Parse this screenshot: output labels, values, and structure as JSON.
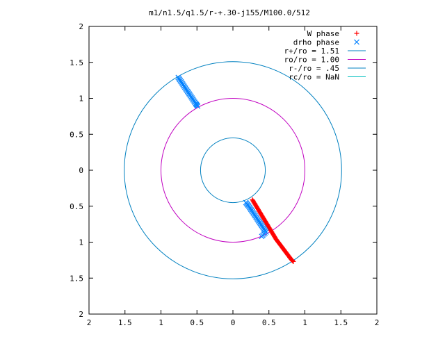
{
  "chart_data": {
    "type": "scatter",
    "title": "m1/n1.5/q1.5/r-+.30-j155/M100.0/512",
    "xlabel": "",
    "ylabel": "",
    "xlim": [
      -2,
      2
    ],
    "ylim": [
      -2,
      2
    ],
    "x_tick_values": [
      -2,
      -1.5,
      -1,
      -0.5,
      0,
      0.5,
      1,
      1.5,
      2
    ],
    "x_tick_labels": [
      "2",
      "1.5",
      "1",
      "0.5",
      "0",
      "0.5",
      "1",
      "1.5",
      "2"
    ],
    "y_tick_values": [
      2,
      1.5,
      1,
      0.5,
      0,
      -0.5,
      -1,
      -1.5,
      -2
    ],
    "y_tick_labels": [
      "2",
      "1.5",
      "1",
      "0.5",
      "0",
      "0.5",
      "1",
      "1.5",
      "2"
    ],
    "grid": false,
    "legend_position": "top-right",
    "series": [
      {
        "name": "W phase",
        "marker": "plus",
        "color": "#ff0000",
        "points": [
          [
            0.27,
            -0.41
          ],
          [
            0.3,
            -0.46
          ],
          [
            0.33,
            -0.51
          ],
          [
            0.36,
            -0.56
          ],
          [
            0.39,
            -0.61
          ],
          [
            0.42,
            -0.66
          ],
          [
            0.45,
            -0.71
          ],
          [
            0.48,
            -0.76
          ],
          [
            0.51,
            -0.81
          ],
          [
            0.54,
            -0.86
          ],
          [
            0.57,
            -0.91
          ],
          [
            0.6,
            -0.96
          ],
          [
            0.63,
            -1.0
          ],
          [
            0.66,
            -1.04
          ],
          [
            0.69,
            -1.08
          ],
          [
            0.72,
            -1.12
          ],
          [
            0.75,
            -1.16
          ],
          [
            0.78,
            -1.2
          ],
          [
            0.81,
            -1.24
          ],
          [
            0.84,
            -1.27
          ]
        ]
      },
      {
        "name": "drho phase",
        "marker": "cross",
        "color": "#0080ff",
        "points": [
          [
            -0.76,
            1.29
          ],
          [
            -0.72,
            1.23
          ],
          [
            -0.68,
            1.17
          ],
          [
            -0.64,
            1.11
          ],
          [
            -0.6,
            1.05
          ],
          [
            -0.56,
            0.99
          ],
          [
            -0.52,
            0.93
          ],
          [
            -0.49,
            0.89
          ],
          [
            0.18,
            -0.45
          ],
          [
            0.22,
            -0.5
          ],
          [
            0.26,
            -0.56
          ],
          [
            0.3,
            -0.62
          ],
          [
            0.34,
            -0.68
          ],
          [
            0.38,
            -0.74
          ],
          [
            0.42,
            -0.8
          ],
          [
            0.46,
            -0.86
          ],
          [
            0.4,
            -0.92
          ]
        ]
      },
      {
        "name": "r+/ro = 1.51",
        "type": "circle",
        "radius": 1.51,
        "color": "#0080c0"
      },
      {
        "name": "ro/ro = 1.00",
        "type": "circle",
        "radius": 1.0,
        "color": "#c000c0"
      },
      {
        "name": "r-/ro =  .45",
        "type": "circle",
        "radius": 0.45,
        "color": "#0080c0"
      },
      {
        "name": "rc/ro = NaN",
        "type": "circle",
        "radius": null,
        "color": "#00c0c0"
      }
    ]
  }
}
